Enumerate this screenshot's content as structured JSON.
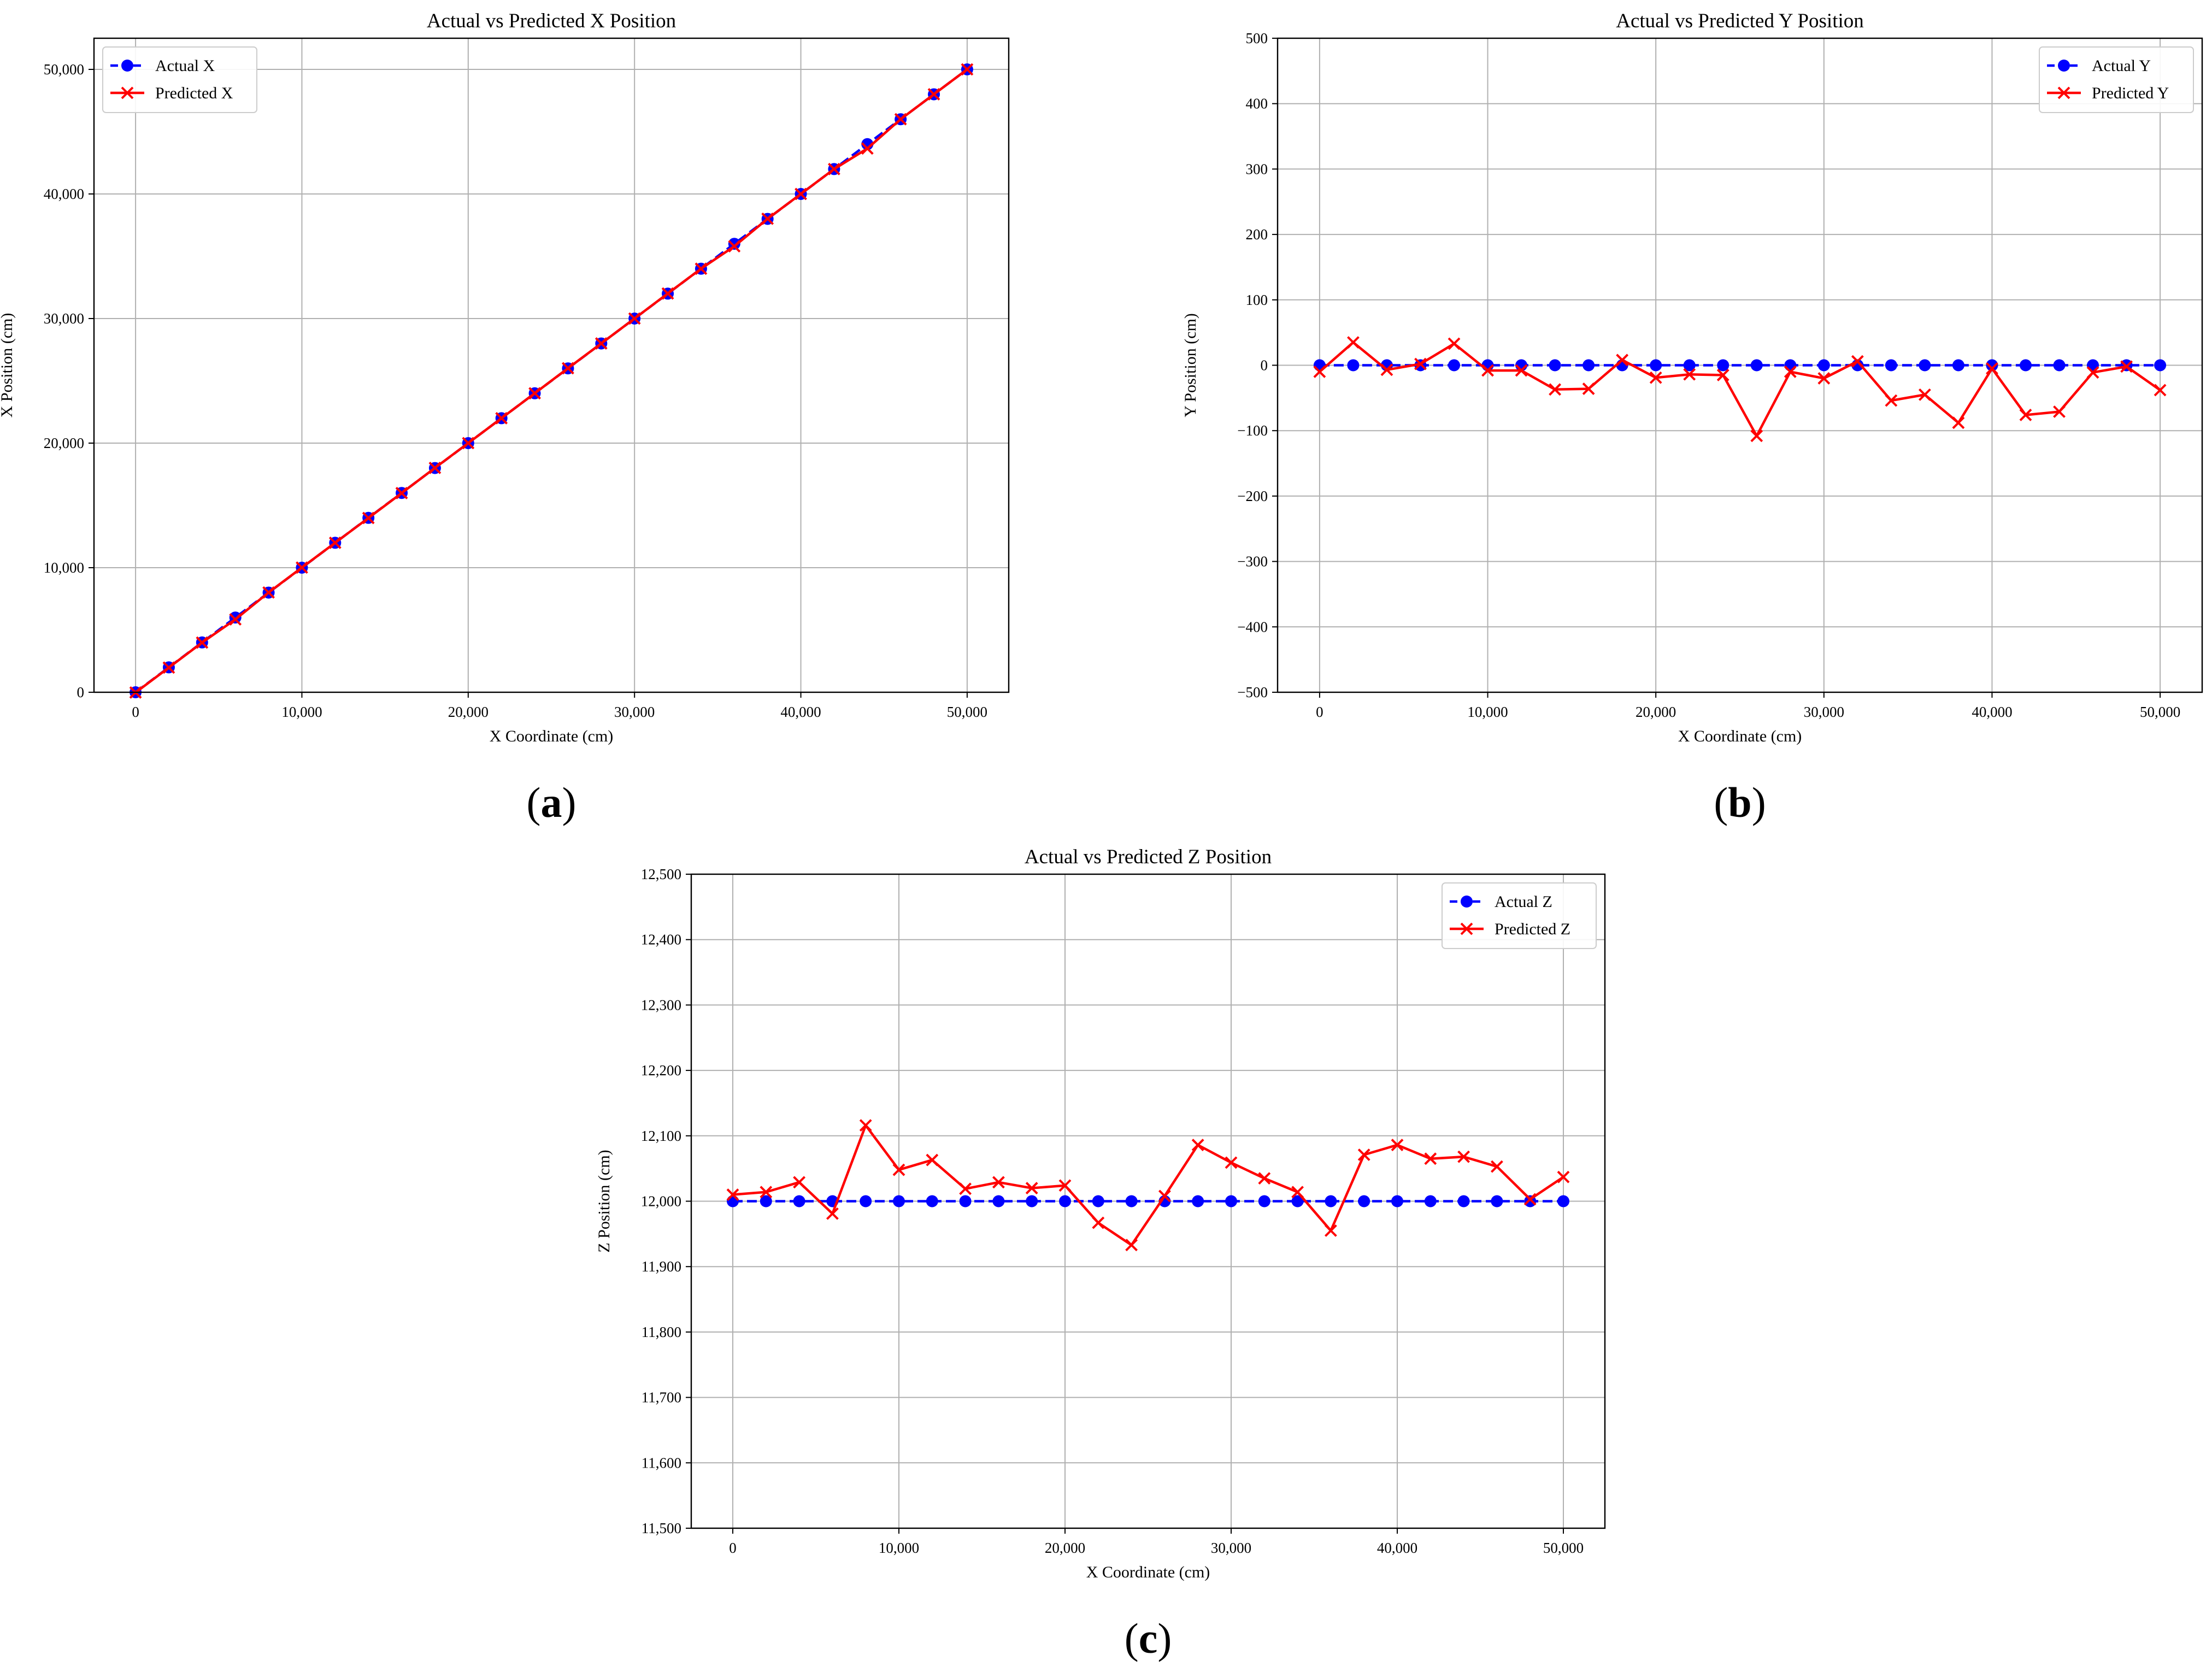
{
  "chart_data": [
    {
      "type": "line",
      "panel_label": "a",
      "title": "Actual vs Predicted X Position",
      "xlabel": "X Coordinate (cm)",
      "ylabel": "X Position (cm)",
      "xlim": [
        -2500,
        52500
      ],
      "ylim": [
        0,
        52500
      ],
      "xticks": [
        0,
        10000,
        20000,
        30000,
        40000,
        50000
      ],
      "xtick_labels": [
        "0",
        "10,000",
        "20,000",
        "30,000",
        "40,000",
        "50,000"
      ],
      "yticks": [
        0,
        10000,
        20000,
        30000,
        40000,
        50000
      ],
      "ytick_labels": [
        "0",
        "10,000",
        "20,000",
        "30,000",
        "40,000",
        "50,000"
      ],
      "grid": true,
      "legend": "top-left",
      "x": [
        0,
        2000,
        4000,
        6000,
        8000,
        10000,
        12000,
        14000,
        16000,
        18000,
        20000,
        22000,
        24000,
        26000,
        28000,
        30000,
        32000,
        34000,
        36000,
        38000,
        40000,
        42000,
        44000,
        46000,
        48000,
        50000
      ],
      "series": [
        {
          "name": "Actual X",
          "color": "#0000ff",
          "style": "dashed",
          "marker": "circle",
          "values": [
            0,
            2000,
            4000,
            6000,
            8000,
            10000,
            12000,
            14000,
            16000,
            18000,
            20000,
            22000,
            24000,
            26000,
            28000,
            30000,
            32000,
            34000,
            36000,
            38000,
            40000,
            42000,
            44000,
            46000,
            48000,
            50000
          ]
        },
        {
          "name": "Predicted X",
          "color": "#ff0000",
          "style": "solid",
          "marker": "x",
          "values": [
            -20,
            1980,
            3990,
            5850,
            8010,
            10010,
            12000,
            13990,
            15990,
            18010,
            20000,
            22000,
            24000,
            26010,
            28000,
            30000,
            32010,
            34000,
            35800,
            38010,
            40000,
            42000,
            43650,
            46000,
            48000,
            50000
          ]
        }
      ]
    },
    {
      "type": "line",
      "panel_label": "b",
      "title": "Actual vs Predicted Y Position",
      "xlabel": "X Coordinate (cm)",
      "ylabel": "Y Position (cm)",
      "xlim": [
        -2500,
        52500
      ],
      "ylim": [
        -500,
        500
      ],
      "xticks": [
        0,
        10000,
        20000,
        30000,
        40000,
        50000
      ],
      "xtick_labels": [
        "0",
        "10,000",
        "20,000",
        "30,000",
        "40,000",
        "50,000"
      ],
      "yticks": [
        -500,
        -400,
        -300,
        -200,
        -100,
        0,
        100,
        200,
        300,
        400,
        500
      ],
      "ytick_labels": [
        "−500",
        "−400",
        "−300",
        "−200",
        "−100",
        "0",
        "100",
        "200",
        "300",
        "400",
        "500"
      ],
      "grid": true,
      "legend": "top-right",
      "x": [
        0,
        2000,
        4000,
        6000,
        8000,
        10000,
        12000,
        14000,
        16000,
        18000,
        20000,
        22000,
        24000,
        26000,
        28000,
        30000,
        32000,
        34000,
        36000,
        38000,
        40000,
        42000,
        44000,
        46000,
        48000,
        50000
      ],
      "series": [
        {
          "name": "Actual Y",
          "color": "#0000ff",
          "style": "dashed",
          "marker": "circle",
          "values": [
            0,
            0,
            0,
            0,
            0,
            0,
            0,
            0,
            0,
            0,
            0,
            0,
            0,
            0,
            0,
            0,
            0,
            0,
            0,
            0,
            0,
            0,
            0,
            0,
            0,
            0
          ]
        },
        {
          "name": "Predicted Y",
          "color": "#ff0000",
          "style": "solid",
          "marker": "x",
          "values": [
            -10,
            35,
            -7,
            2,
            33,
            -8,
            -8,
            -37,
            -36,
            8,
            -19,
            -14,
            -15,
            -108,
            -10,
            -20,
            6,
            -54,
            -45,
            -88,
            -5,
            -76,
            -71,
            -11,
            -2,
            -38
          ]
        }
      ]
    },
    {
      "type": "line",
      "panel_label": "c",
      "title": "Actual vs Predicted Z Position",
      "xlabel": "X Coordinate (cm)",
      "ylabel": "Z Position (cm)",
      "xlim": [
        -2500,
        52500
      ],
      "ylim": [
        11500,
        12500
      ],
      "xticks": [
        0,
        10000,
        20000,
        30000,
        40000,
        50000
      ],
      "xtick_labels": [
        "0",
        "10,000",
        "20,000",
        "30,000",
        "40,000",
        "50,000"
      ],
      "yticks": [
        11500,
        11600,
        11700,
        11800,
        11900,
        12000,
        12100,
        12200,
        12300,
        12400,
        12500
      ],
      "ytick_labels": [
        "11,500",
        "11,600",
        "11,700",
        "11,800",
        "11,900",
        "12,000",
        "12,100",
        "12,200",
        "12,300",
        "12,400",
        "12,500"
      ],
      "grid": true,
      "legend": "top-right",
      "x": [
        0,
        2000,
        4000,
        6000,
        8000,
        10000,
        12000,
        14000,
        16000,
        18000,
        20000,
        22000,
        24000,
        26000,
        28000,
        30000,
        32000,
        34000,
        36000,
        38000,
        40000,
        42000,
        44000,
        46000,
        48000,
        50000
      ],
      "series": [
        {
          "name": "Actual Z",
          "color": "#0000ff",
          "style": "dashed",
          "marker": "circle",
          "values": [
            12000,
            12000,
            12000,
            12000,
            12000,
            12000,
            12000,
            12000,
            12000,
            12000,
            12000,
            12000,
            12000,
            12000,
            12000,
            12000,
            12000,
            12000,
            12000,
            12000,
            12000,
            12000,
            12000,
            12000,
            12000,
            12000
          ]
        },
        {
          "name": "Predicted Z",
          "color": "#ff0000",
          "style": "solid",
          "marker": "x",
          "values": [
            12010,
            12014,
            12029,
            11981,
            12116,
            12048,
            12063,
            12019,
            12029,
            12020,
            12024,
            11967,
            11933,
            12008,
            12086,
            12059,
            12035,
            12014,
            11955,
            12071,
            12086,
            12065,
            12068,
            12053,
            12003,
            12037
          ]
        }
      ]
    }
  ]
}
